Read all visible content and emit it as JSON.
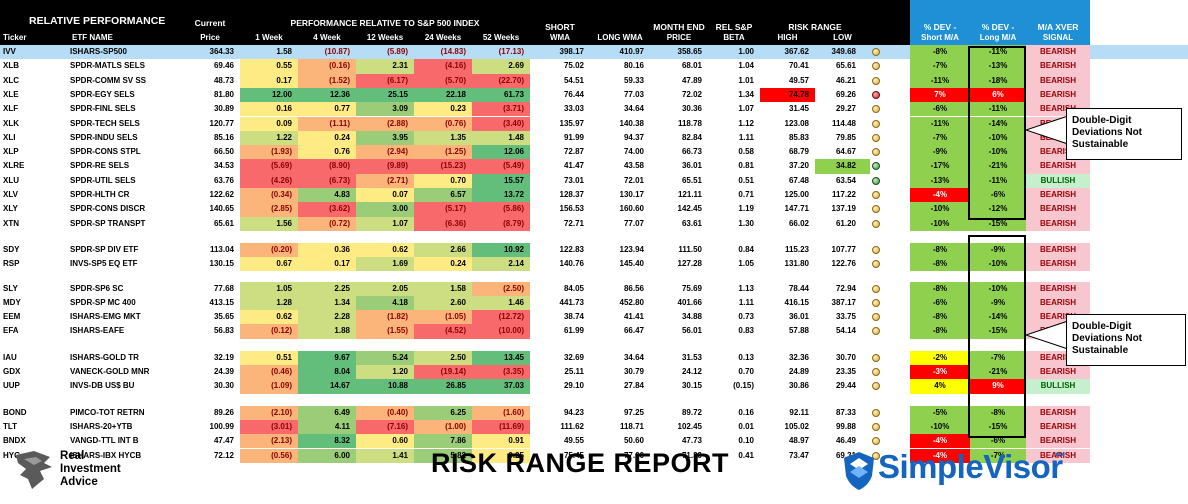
{
  "header": {
    "title": "RELATIVE PERFORMANCE",
    "current": "Current",
    "perf_title": "PERFORMANCE RELATIVE TO S&P 500 INDEX",
    "short": "SHORT",
    "month_end": "MONTH END",
    "rel_sp": "REL S&P",
    "risk_range": "RISK RANGE",
    "dev_short_1": "% DEV -",
    "dev_long_1": "% DEV -",
    "xver_1": "M/A XVER",
    "ticker": "Ticker",
    "etf_name": "ETF NAME",
    "price": "Price",
    "w1": "1 Week",
    "w4": "4 Week",
    "w12": "12 Weeks",
    "w24": "24 Weeks",
    "w52": "52 Weeks",
    "wma": "WMA",
    "long_wma": "LONG WMA",
    "me_price": "PRICE",
    "beta": "BETA",
    "high": "HIGH",
    "low": "LOW",
    "dev_short_2": "Short M/A",
    "dev_long_2": "Long M/A",
    "xver_2": "SIGNAL"
  },
  "rows": [
    {
      "ticker": "IVV",
      "name": "ISHARS-SP500",
      "price": "364.33",
      "w1": "1.58",
      "w4": "(10.87)",
      "w12": "(5.89)",
      "w24": "(14.83)",
      "w52": "(17.13)",
      "swma": "398.17",
      "lwma": "410.97",
      "me": "358.65",
      "beta": "1.00",
      "high": "367.62",
      "low": "349.68",
      "dot": "gold",
      "ds": "-8%",
      "dl": "-11%",
      "sig": "BEARISH"
    },
    {
      "ticker": "XLB",
      "name": "SPDR-MATLS SELS",
      "price": "69.46",
      "w1": "0.55",
      "w4": "(0.16)",
      "w12": "2.31",
      "w24": "(4.16)",
      "w52": "2.69",
      "swma": "75.02",
      "lwma": "80.16",
      "me": "68.01",
      "beta": "1.04",
      "high": "70.41",
      "low": "65.61",
      "dot": "gold",
      "ds": "-7%",
      "dl": "-13%",
      "sig": "BEARISH"
    },
    {
      "ticker": "XLC",
      "name": "SPDR-COMM SV SS",
      "price": "48.73",
      "w1": "0.17",
      "w4": "(1.52)",
      "w12": "(6.17)",
      "w24": "(5.70)",
      "w52": "(22.70)",
      "swma": "54.51",
      "lwma": "59.33",
      "me": "47.89",
      "beta": "1.01",
      "high": "49.57",
      "low": "46.21",
      "dot": "gold",
      "ds": "-11%",
      "dl": "-18%",
      "sig": "BEARISH"
    },
    {
      "ticker": "XLE",
      "name": "SPDR-EGY SELS",
      "price": "81.80",
      "w1": "12.00",
      "w4": "12.36",
      "w12": "25.15",
      "w24": "22.18",
      "w52": "61.73",
      "swma": "76.44",
      "lwma": "77.03",
      "me": "72.02",
      "beta": "1.34",
      "high": "74.78",
      "low": "69.26",
      "dot": "red",
      "ds": "7%",
      "dl": "6%",
      "sig": "BEARISH"
    },
    {
      "ticker": "XLF",
      "name": "SPDR-FINL SELS",
      "price": "30.89",
      "w1": "0.16",
      "w4": "0.77",
      "w12": "3.09",
      "w24": "0.23",
      "w52": "(3.71)",
      "swma": "33.03",
      "lwma": "34.64",
      "me": "30.36",
      "beta": "1.07",
      "high": "31.45",
      "low": "29.27",
      "dot": "gold",
      "ds": "-6%",
      "dl": "-11%",
      "sig": "BEARISH"
    },
    {
      "ticker": "XLK",
      "name": "SPDR-TECH SELS",
      "price": "120.77",
      "w1": "0.09",
      "w4": "(1.11)",
      "w12": "(2.88)",
      "w24": "(0.76)",
      "w52": "(3.40)",
      "swma": "135.97",
      "lwma": "140.38",
      "me": "118.78",
      "beta": "1.12",
      "high": "123.08",
      "low": "114.48",
      "dot": "gold",
      "ds": "-11%",
      "dl": "-14%",
      "sig": "BEARISH"
    },
    {
      "ticker": "XLI",
      "name": "SPDR-INDU SELS",
      "price": "85.16",
      "w1": "1.22",
      "w4": "0.24",
      "w12": "3.95",
      "w24": "1.35",
      "w52": "1.48",
      "swma": "91.99",
      "lwma": "94.37",
      "me": "82.84",
      "beta": "1.11",
      "high": "85.83",
      "low": "79.85",
      "dot": "gold",
      "ds": "-7%",
      "dl": "-10%",
      "sig": "BEARISH"
    },
    {
      "ticker": "XLP",
      "name": "SPDR-CONS STPL",
      "price": "66.50",
      "w1": "(1.93)",
      "w4": "0.76",
      "w12": "(2.94)",
      "w24": "(1.25)",
      "w52": "12.06",
      "swma": "72.87",
      "lwma": "74.00",
      "me": "66.73",
      "beta": "0.58",
      "high": "68.79",
      "low": "64.67",
      "dot": "gold",
      "ds": "-9%",
      "dl": "-10%",
      "sig": "BEARISH"
    },
    {
      "ticker": "XLRE",
      "name": "SPDR-RE SELS",
      "price": "34.53",
      "w1": "(5.69)",
      "w4": "(8.90)",
      "w12": "(9.89)",
      "w24": "(15.23)",
      "w52": "(5.49)",
      "swma": "41.47",
      "lwma": "43.58",
      "me": "36.01",
      "beta": "0.81",
      "high": "37.20",
      "low": "34.82",
      "dot": "grn",
      "ds": "-17%",
      "dl": "-21%",
      "sig": "BEARISH"
    },
    {
      "ticker": "XLU",
      "name": "SPDR-UTIL SELS",
      "price": "63.76",
      "w1": "(4.26)",
      "w4": "(6.73)",
      "w12": "(2.71)",
      "w24": "0.70",
      "w52": "15.57",
      "swma": "73.01",
      "lwma": "72.01",
      "me": "65.51",
      "beta": "0.51",
      "high": "67.48",
      "low": "63.54",
      "dot": "grn",
      "ds": "-13%",
      "dl": "-11%",
      "sig": "BULLISH"
    },
    {
      "ticker": "XLV",
      "name": "SPDR-HLTH CR",
      "price": "122.62",
      "w1": "(0.34)",
      "w4": "4.83",
      "w12": "0.07",
      "w24": "6.57",
      "w52": "13.72",
      "swma": "128.37",
      "lwma": "130.17",
      "me": "121.11",
      "beta": "0.71",
      "high": "125.00",
      "low": "117.22",
      "dot": "gold",
      "ds": "-4%",
      "dl": "-6%",
      "sig": "BEARISH"
    },
    {
      "ticker": "XLY",
      "name": "SPDR-CONS DISCR",
      "price": "140.65",
      "w1": "(2.85)",
      "w4": "(3.62)",
      "w12": "3.00",
      "w24": "(5.17)",
      "w52": "(5.86)",
      "swma": "156.53",
      "lwma": "160.60",
      "me": "142.45",
      "beta": "1.19",
      "high": "147.71",
      "low": "137.19",
      "dot": "gold",
      "ds": "-10%",
      "dl": "-12%",
      "sig": "BEARISH"
    },
    {
      "ticker": "XTN",
      "name": "SPDR-SP TRANSPT",
      "price": "65.61",
      "w1": "1.56",
      "w4": "(0.72)",
      "w12": "1.07",
      "w24": "(6.36)",
      "w52": "(8.79)",
      "swma": "72.71",
      "lwma": "77.07",
      "me": "63.61",
      "beta": "1.30",
      "high": "66.02",
      "low": "61.20",
      "dot": "gold",
      "ds": "-10%",
      "dl": "-15%",
      "sig": "BEARISH"
    },
    {
      "ticker": "SDY",
      "name": "SPDR-SP DIV ETF",
      "price": "113.04",
      "w1": "(0.20)",
      "w4": "0.36",
      "w12": "0.62",
      "w24": "2.66",
      "w52": "10.92",
      "swma": "122.83",
      "lwma": "123.94",
      "me": "111.50",
      "beta": "0.84",
      "high": "115.23",
      "low": "107.77",
      "dot": "gold",
      "ds": "-8%",
      "dl": "-9%",
      "sig": "BEARISH"
    },
    {
      "ticker": "RSP",
      "name": "INVS-SP5 EQ ETF",
      "price": "130.15",
      "w1": "0.67",
      "w4": "0.17",
      "w12": "1.69",
      "w24": "0.24",
      "w52": "2.14",
      "swma": "140.76",
      "lwma": "145.40",
      "me": "127.28",
      "beta": "1.05",
      "high": "131.80",
      "low": "122.76",
      "dot": "gold",
      "ds": "-8%",
      "dl": "-10%",
      "sig": "BEARISH"
    },
    {
      "ticker": "SLY",
      "name": "SPDR-SP6 SC",
      "price": "77.68",
      "w1": "1.05",
      "w4": "2.25",
      "w12": "2.05",
      "w24": "1.58",
      "w52": "(2.50)",
      "swma": "84.05",
      "lwma": "86.56",
      "me": "75.69",
      "beta": "1.13",
      "high": "78.44",
      "low": "72.94",
      "dot": "gold",
      "ds": "-8%",
      "dl": "-10%",
      "sig": "BEARISH"
    },
    {
      "ticker": "MDY",
      "name": "SPDR-SP MC 400",
      "price": "413.15",
      "w1": "1.28",
      "w4": "1.34",
      "w12": "4.18",
      "w24": "2.60",
      "w52": "1.46",
      "swma": "441.73",
      "lwma": "452.80",
      "me": "401.66",
      "beta": "1.11",
      "high": "416.15",
      "low": "387.17",
      "dot": "gold",
      "ds": "-6%",
      "dl": "-9%",
      "sig": "BEARISH"
    },
    {
      "ticker": "EEM",
      "name": "ISHARS-EMG MKT",
      "price": "35.65",
      "w1": "0.62",
      "w4": "2.28",
      "w12": "(1.82)",
      "w24": "(1.05)",
      "w52": "(12.72)",
      "swma": "38.74",
      "lwma": "41.41",
      "me": "34.88",
      "beta": "0.73",
      "high": "36.01",
      "low": "33.75",
      "dot": "gold",
      "ds": "-8%",
      "dl": "-14%",
      "sig": "BEARISH"
    },
    {
      "ticker": "EFA",
      "name": "ISHARS-EAFE",
      "price": "56.83",
      "w1": "(0.12)",
      "w4": "1.88",
      "w12": "(1.55)",
      "w24": "(4.52)",
      "w52": "(10.00)",
      "swma": "61.99",
      "lwma": "66.47",
      "me": "56.01",
      "beta": "0.83",
      "high": "57.88",
      "low": "54.14",
      "dot": "gold",
      "ds": "-8%",
      "dl": "-15%",
      "sig": "BEARISH"
    },
    {
      "ticker": "IAU",
      "name": "ISHARS-GOLD TR",
      "price": "32.19",
      "w1": "0.51",
      "w4": "9.67",
      "w12": "5.24",
      "w24": "2.50",
      "w52": "13.45",
      "swma": "32.69",
      "lwma": "34.64",
      "me": "31.53",
      "beta": "0.13",
      "high": "32.36",
      "low": "30.70",
      "dot": "gold",
      "ds": "-2%",
      "dl": "-7%",
      "sig": "BEARISH"
    },
    {
      "ticker": "GDX",
      "name": "VANECK-GOLD MNR",
      "price": "24.39",
      "w1": "(0.46)",
      "w4": "8.04",
      "w12": "1.20",
      "w24": "(19.14)",
      "w52": "(3.35)",
      "swma": "25.11",
      "lwma": "30.79",
      "me": "24.12",
      "beta": "0.70",
      "high": "24.89",
      "low": "23.35",
      "dot": "gold",
      "ds": "-3%",
      "dl": "-21%",
      "sig": "BEARISH"
    },
    {
      "ticker": "UUP",
      "name": "INVS-DB US$ BU",
      "price": "30.30",
      "w1": "(1.09)",
      "w4": "14.67",
      "w12": "10.88",
      "w24": "26.85",
      "w52": "37.03",
      "swma": "29.10",
      "lwma": "27.84",
      "me": "30.15",
      "beta": "(0.15)",
      "high": "30.86",
      "low": "29.44",
      "dot": "gold",
      "ds": "4%",
      "dl": "9%",
      "sig": "BULLISH"
    },
    {
      "ticker": "BOND",
      "name": "PIMCO-TOT RETRN",
      "price": "89.26",
      "w1": "(2.10)",
      "w4": "6.49",
      "w12": "(0.40)",
      "w24": "6.25",
      "w52": "(1.60)",
      "swma": "94.23",
      "lwma": "97.25",
      "me": "89.72",
      "beta": "0.16",
      "high": "92.11",
      "low": "87.33",
      "dot": "gold",
      "ds": "-5%",
      "dl": "-8%",
      "sig": "BEARISH"
    },
    {
      "ticker": "TLT",
      "name": "ISHARS-20+YTB",
      "price": "100.99",
      "w1": "(3.01)",
      "w4": "4.11",
      "w12": "(7.16)",
      "w24": "(1.00)",
      "w52": "(11.69)",
      "swma": "111.62",
      "lwma": "118.71",
      "me": "102.45",
      "beta": "0.01",
      "high": "105.02",
      "low": "99.88",
      "dot": "gold",
      "ds": "-10%",
      "dl": "-15%",
      "sig": "BEARISH"
    },
    {
      "ticker": "BNDX",
      "name": "VANGD-TTL INT B",
      "price": "47.47",
      "w1": "(2.13)",
      "w4": "8.32",
      "w12": "0.60",
      "w24": "7.86",
      "w52": "0.91",
      "swma": "49.55",
      "lwma": "50.60",
      "me": "47.73",
      "beta": "0.10",
      "high": "48.97",
      "low": "46.49",
      "dot": "gold",
      "ds": "-4%",
      "dl": "-6%",
      "sig": "BEARISH"
    },
    {
      "ticker": "HYG",
      "name": "ISHARS-IBX HYCB",
      "price": "72.12",
      "w1": "(0.56)",
      "w4": "6.00",
      "w12": "1.41",
      "w24": "5.82",
      "w52": "0.25",
      "swma": "75.45",
      "lwma": "77.66",
      "me": "71.39",
      "beta": "0.41",
      "high": "73.47",
      "low": "69.31",
      "dot": "gold",
      "ds": "-4%",
      "dl": "-7%",
      "sig": "BEARISH"
    }
  ],
  "callouts": [
    {
      "text": "Double-Digit Deviations Not Sustainable"
    },
    {
      "text": "Double-Digit  Deviations Not Sustainable"
    }
  ],
  "footer": {
    "title": "RISK RANGE REPORT",
    "ria_line1": "Real",
    "ria_line2": "Investment",
    "ria_line3": "Advice",
    "sv_logo": "SimpleVisor",
    "sv_tm": "™"
  },
  "colors": {
    "header_dark": "#000000",
    "header_blue": "#1f8fd6",
    "highlight_row": "#b7dcf5",
    "bearish_bg": "#f7c6ce",
    "bullish_bg": "#c6efce",
    "dev_green": "#8fd14f",
    "dev_red": "#ff0000",
    "dev_yellow": "#ffff00"
  },
  "icons": [
    "ria-eagle-icon",
    "simplevisor-shield-icon",
    "signal-dot-icon"
  ]
}
